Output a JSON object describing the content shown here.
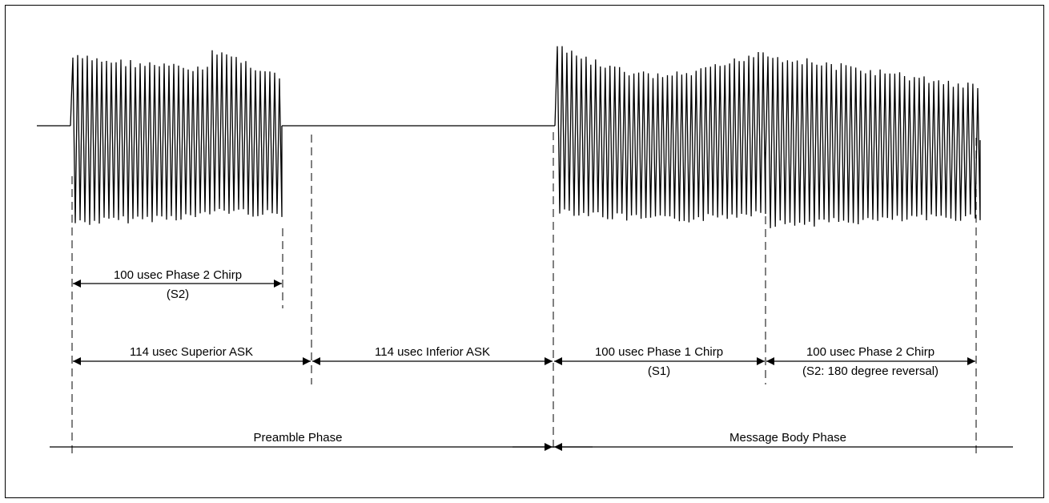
{
  "labels": {
    "chirp_s2_preamble": {
      "line1": "100 usec Phase 2 Chirp",
      "line2": "(S2)"
    },
    "superior_ask": "114 usec Superior ASK",
    "inferior_ask": "114 usec Inferior ASK",
    "chirp_s1": {
      "line1": "100 usec Phase 1 Chirp",
      "line2": "(S1)"
    },
    "chirp_s2_reversal": {
      "line1": "100 usec Phase 2 Chirp",
      "line2": "(S2: 180 degree reversal)"
    },
    "preamble_phase": "Preamble Phase",
    "message_body_phase": "Message Body Phase"
  },
  "colors": {
    "stroke": "#000000",
    "background": "#ffffff"
  }
}
